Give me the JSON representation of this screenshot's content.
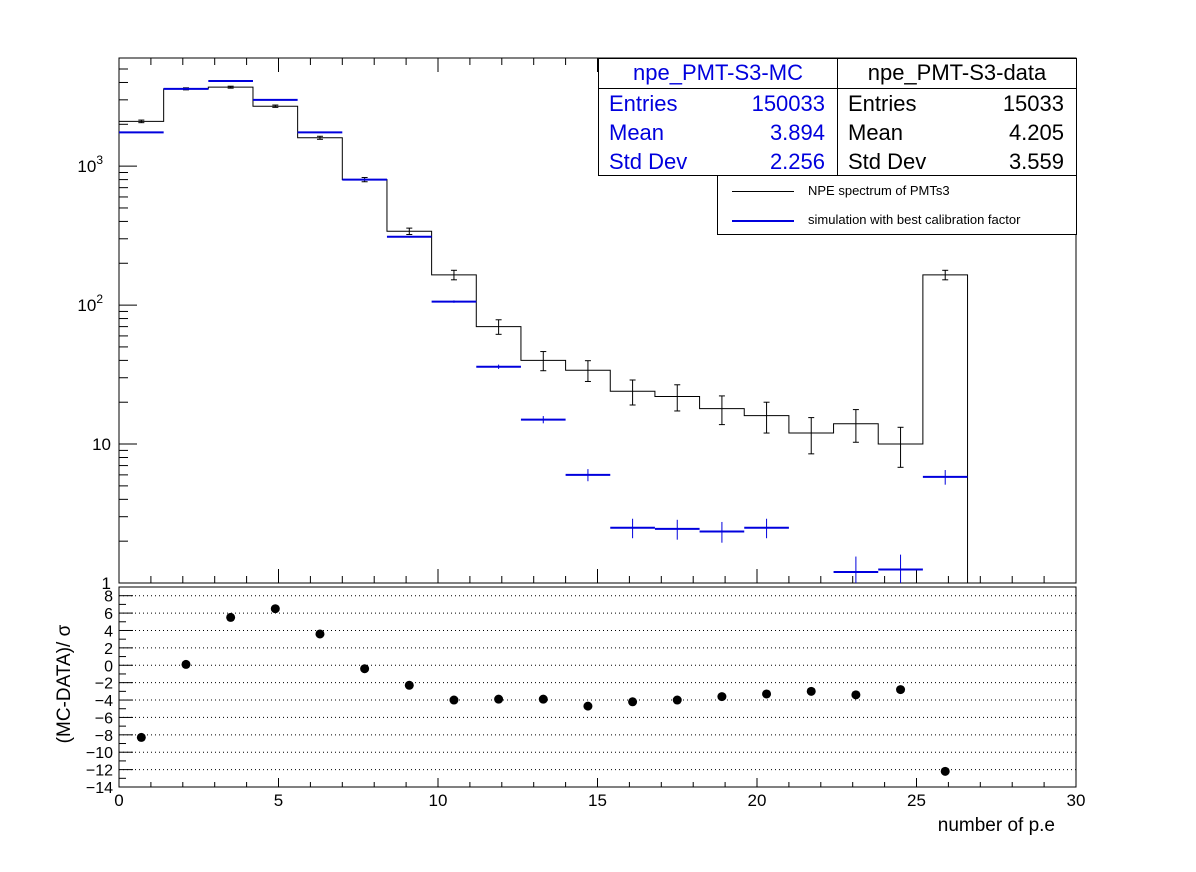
{
  "chart_data": [
    {
      "type": "histogram",
      "yscale": "log",
      "xlim": [
        0,
        30
      ],
      "ylim": [
        1,
        6000
      ],
      "y_tick_labels": [
        "1",
        "10",
        "10^2",
        "10^3"
      ],
      "series": [
        {
          "name": "NPE spectrum of PMTs3",
          "color": "#000000",
          "bin_edges": [
            0,
            1.4,
            2.8,
            4.2,
            5.6,
            7.0,
            8.4,
            9.8,
            11.2,
            12.6,
            14.0,
            15.4,
            16.8,
            18.2,
            19.6,
            21.0,
            22.4,
            23.8,
            25.2,
            26.6
          ],
          "values": [
            2100,
            3600,
            3700,
            2700,
            1600,
            800,
            340,
            165,
            70,
            40,
            34,
            24,
            22,
            18,
            16,
            12,
            14,
            10,
            165
          ],
          "errors": [
            45,
            60,
            60,
            52,
            40,
            28,
            18,
            13,
            8.4,
            6.3,
            5.8,
            4.9,
            4.7,
            4.2,
            4.0,
            3.5,
            3.7,
            3.2,
            13
          ]
        },
        {
          "name": "simulation with best calibration factor",
          "color": "#0000dd",
          "bin_edges": [
            0,
            1.4,
            2.8,
            4.2,
            5.6,
            7.0,
            8.4,
            9.8,
            11.2,
            12.6,
            14.0,
            15.4,
            16.8,
            18.2,
            19.6,
            21.0,
            22.4,
            23.8,
            25.2,
            26.6
          ],
          "values": [
            1750,
            3600,
            4100,
            3000,
            1750,
            800,
            310,
            106,
            36,
            15,
            6,
            2.5,
            2.45,
            2.35,
            2.5,
            0,
            1.2,
            1.25,
            5.8
          ],
          "errors": [
            8,
            12,
            13,
            11,
            8,
            6,
            4,
            2.1,
            1.3,
            0.9,
            0.6,
            0.4,
            0.4,
            0.4,
            0.4,
            0,
            0.35,
            0.35,
            0.7
          ]
        }
      ],
      "stats_boxes": [
        {
          "title": "npe_PMT-S3-MC",
          "color": "#0000dd",
          "rows": [
            [
              "Entries",
              "150033"
            ],
            [
              "Mean",
              "3.894"
            ],
            [
              "Std Dev",
              "2.256"
            ]
          ]
        },
        {
          "title": "npe_PMT-S3-data",
          "color": "#000000",
          "rows": [
            [
              "Entries",
              "15033"
            ],
            [
              "Mean",
              "4.205"
            ],
            [
              "Std Dev",
              "3.559"
            ]
          ]
        }
      ],
      "legend_position": "top-right"
    },
    {
      "type": "scatter",
      "xlabel": "number of p.e",
      "ylabel": "(MC-DATA)/ σ",
      "xlim": [
        0,
        30
      ],
      "ylim": [
        -14,
        9
      ],
      "x_ticks": [
        0,
        5,
        10,
        15,
        20,
        25,
        30
      ],
      "y_ticks": [
        -14,
        -12,
        -10,
        -8,
        -6,
        -4,
        -2,
        0,
        2,
        4,
        6,
        8
      ],
      "grid": "horizontal dotted",
      "x": [
        0.7,
        2.1,
        3.5,
        4.9,
        6.3,
        7.7,
        9.1,
        10.5,
        11.9,
        13.3,
        14.7,
        16.1,
        17.5,
        18.9,
        20.3,
        21.7,
        23.1,
        24.5,
        25.9
      ],
      "y": [
        -8.3,
        0.1,
        5.5,
        6.5,
        3.6,
        -0.4,
        -2.3,
        -4.0,
        -3.9,
        -3.9,
        -4.7,
        -4.2,
        -4.0,
        -3.6,
        -3.3,
        -3.0,
        -3.4,
        -2.8,
        -12.2
      ]
    }
  ]
}
